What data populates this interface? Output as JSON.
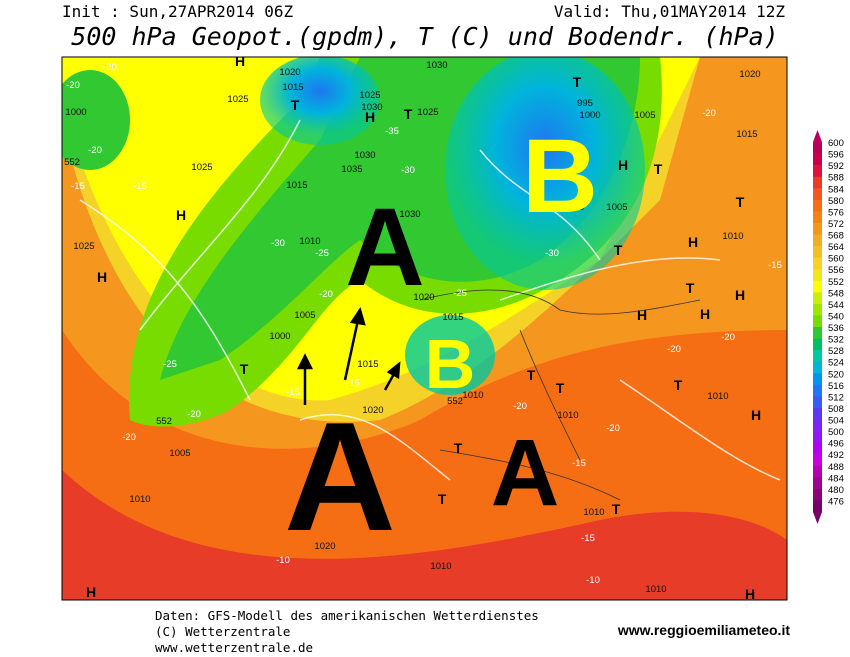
{
  "header": {
    "init": "Init : Sun,27APR2014 06Z",
    "valid": "Valid: Thu,01MAY2014 12Z",
    "title": "500 hPa Geopot.(gpdm), T (C) und Bodendr. (hPa)"
  },
  "colorbar": {
    "values": [
      600,
      596,
      592,
      588,
      584,
      580,
      576,
      572,
      568,
      564,
      560,
      556,
      552,
      548,
      544,
      540,
      536,
      532,
      528,
      524,
      520,
      516,
      512,
      508,
      504,
      500,
      496,
      492,
      488,
      484,
      480,
      476
    ],
    "colors": [
      "#b4005a",
      "#c8004b",
      "#dc143c",
      "#e63c28",
      "#f05a1e",
      "#f56e14",
      "#f58214",
      "#f5961e",
      "#f5aa28",
      "#f5be28",
      "#f5d228",
      "#f0e61e",
      "#ffff00",
      "#c8f000",
      "#a0e600",
      "#78dc00",
      "#32c832",
      "#00be64",
      "#00c8a0",
      "#00b4dc",
      "#0096f0",
      "#1e78f0",
      "#3c5af0",
      "#5a3cf0",
      "#7828f0",
      "#9614f0",
      "#b400f0",
      "#c800dc",
      "#b400b4",
      "#a00096",
      "#8c0078",
      "#780064"
    ]
  },
  "map": {
    "big_letters": [
      "A",
      "A",
      "A",
      "B",
      "B"
    ],
    "labels": [
      "1020",
      "1015",
      "1030",
      "1025",
      "1025",
      "1030",
      "1025",
      "1000",
      "995",
      "1000",
      "1005",
      "1020",
      "1015",
      "1030",
      "1035",
      "1015",
      "1025",
      "1030",
      "1010",
      "1025",
      "1005",
      "1010",
      "1010",
      "1020",
      "1015",
      "1005",
      "1000",
      "1015",
      "1020",
      "1010",
      "1005",
      "1010",
      "1020",
      "1010",
      "1010",
      "1010",
      "1010",
      "1010",
      "-20",
      "-20",
      "-20",
      "-15",
      "-15",
      "-35",
      "-30",
      "-30",
      "-25",
      "-20",
      "-25",
      "-25",
      "-15",
      "-15",
      "-20",
      "-20",
      "-10",
      "-15",
      "-10",
      "-20",
      "-15",
      "-20",
      "-20",
      "-20",
      "-15",
      "-20",
      "-30",
      "H",
      "T",
      "H",
      "T",
      "T",
      "H",
      "H",
      "T",
      "T",
      "H",
      "T",
      "H",
      "H",
      "H",
      "H",
      "T",
      "H",
      "T",
      "T",
      "T",
      "T",
      "T",
      "H",
      "H",
      "T",
      "T",
      "552",
      "552",
      "552"
    ]
  },
  "footer": {
    "lines": [
      "Daten: GFS-Modell des amerikanischen Wetterdienstes",
      "(C) Wetterzentrale",
      "www.wetterzentrale.de"
    ],
    "website": "www.reggioemiliameteo.it"
  }
}
